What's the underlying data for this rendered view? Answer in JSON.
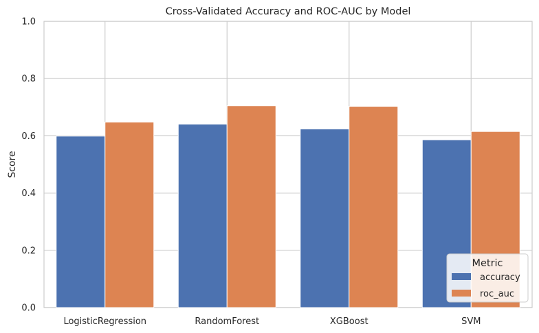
{
  "chart_data": {
    "type": "bar",
    "title": "Cross-Validated Accuracy and ROC-AUC by Model",
    "xlabel": "",
    "ylabel": "Score",
    "categories": [
      "LogisticRegression",
      "RandomForest",
      "XGBoost",
      "SVM"
    ],
    "series": [
      {
        "name": "accuracy",
        "values": [
          0.599,
          0.641,
          0.624,
          0.586
        ],
        "color": "#4c72b0"
      },
      {
        "name": "roc_auc",
        "values": [
          0.648,
          0.705,
          0.703,
          0.615
        ],
        "color": "#dd8452"
      }
    ],
    "ylim": [
      0,
      1
    ],
    "yticks": [
      "0.0",
      "0.2",
      "0.4",
      "0.6",
      "0.8",
      "1.0"
    ],
    "grid": true,
    "legend": {
      "title": "Metric",
      "placement": "lower-right"
    }
  }
}
